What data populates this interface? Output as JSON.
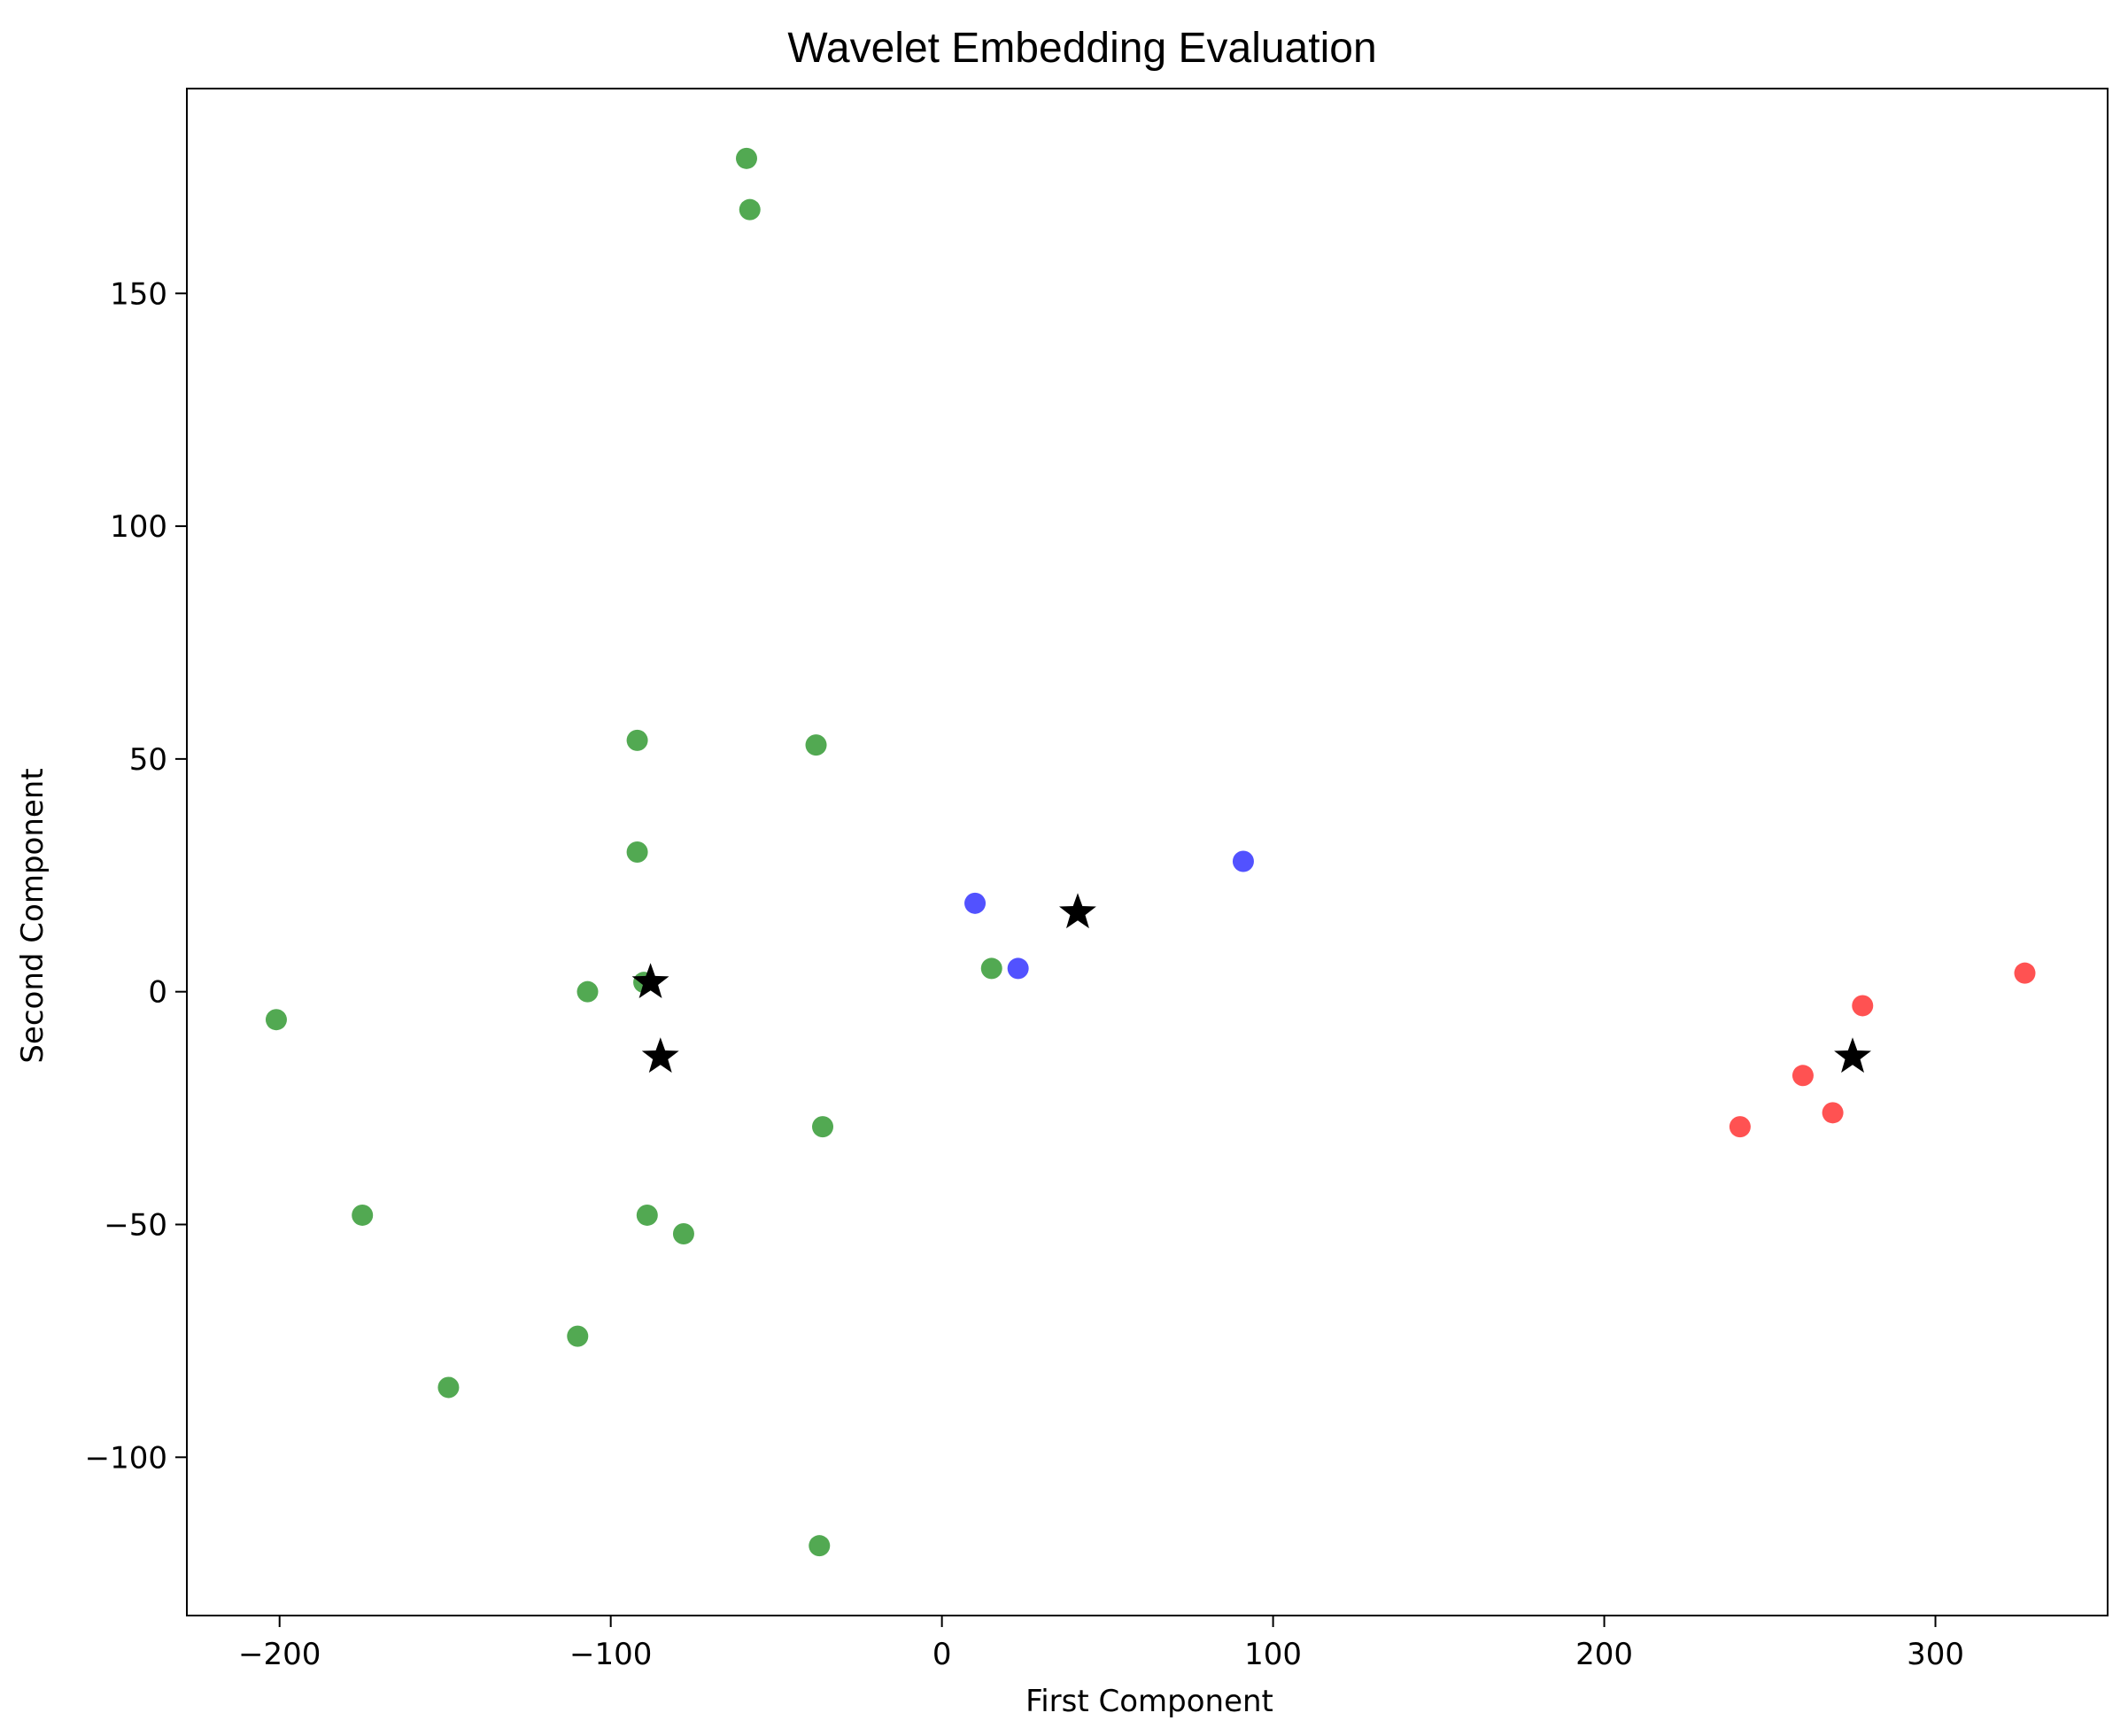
{
  "chart_data": {
    "type": "scatter",
    "title": "Wavelet Embedding  Evaluation",
    "xlabel": "First Component",
    "ylabel": "Second Component",
    "xlim": [
      -228,
      352
    ],
    "ylim": [
      -134,
      194
    ],
    "x_ticks": [
      -200,
      -100,
      0,
      100,
      200,
      300
    ],
    "y_ticks": [
      -100,
      -50,
      0,
      50,
      100,
      150
    ],
    "x_tick_labels": [
      "−200",
      "−100",
      "0",
      "100",
      "200",
      "300"
    ],
    "y_tick_labels": [
      "−100",
      "−50",
      "0",
      "50",
      "100",
      "150"
    ],
    "grid": false,
    "legend": "none",
    "series": [
      {
        "color": "#008000",
        "marker": "circle",
        "points": [
          {
            "x": -59,
            "y": 179
          },
          {
            "x": -58,
            "y": 168
          },
          {
            "x": -92,
            "y": 54
          },
          {
            "x": -38,
            "y": 53
          },
          {
            "x": -92,
            "y": 30
          },
          {
            "x": -90,
            "y": 2
          },
          {
            "x": -107,
            "y": 0
          },
          {
            "x": -201,
            "y": -6
          },
          {
            "x": 15,
            "y": 5
          },
          {
            "x": -36,
            "y": -29
          },
          {
            "x": -175,
            "y": -48
          },
          {
            "x": -89,
            "y": -48
          },
          {
            "x": -78,
            "y": -52
          },
          {
            "x": -110,
            "y": -74
          },
          {
            "x": -149,
            "y": -85
          },
          {
            "x": -37,
            "y": -119
          }
        ]
      },
      {
        "color": "#0000ff",
        "marker": "circle",
        "points": [
          {
            "x": 10,
            "y": 19
          },
          {
            "x": 23,
            "y": 5
          },
          {
            "x": 91,
            "y": 28
          }
        ]
      },
      {
        "color": "#ff0000",
        "marker": "circle",
        "points": [
          {
            "x": 278,
            "y": -3
          },
          {
            "x": 327,
            "y": 4
          },
          {
            "x": 260,
            "y": -18
          },
          {
            "x": 269,
            "y": -26
          },
          {
            "x": 241,
            "y": -29
          }
        ]
      },
      {
        "color": "#000000",
        "marker": "star",
        "points": [
          {
            "x": -88,
            "y": 2
          },
          {
            "x": -85,
            "y": -14
          },
          {
            "x": 41,
            "y": 17
          },
          {
            "x": 275,
            "y": -14
          }
        ]
      }
    ]
  }
}
